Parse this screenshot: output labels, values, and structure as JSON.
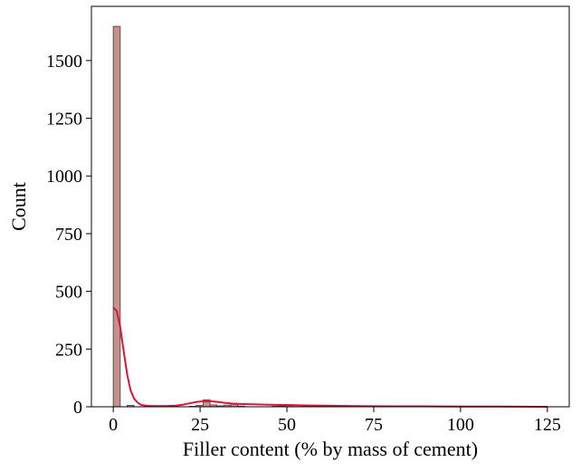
{
  "chart_data": {
    "type": "bar",
    "subtype": "histogram-with-kde",
    "title": "",
    "xlabel": "Filler content (% by mass of cement)",
    "ylabel": "Count",
    "xlim": [
      -6.3,
      131.3
    ],
    "ylim": [
      0,
      1735
    ],
    "xticks": [
      0,
      25,
      50,
      75,
      100,
      125
    ],
    "yticks": [
      0,
      250,
      500,
      750,
      1000,
      1250,
      1500
    ],
    "grid": false,
    "legend": "none",
    "bin_start": 0,
    "bin_width": 1.99,
    "counts": [
      1648,
      0,
      6,
      0,
      0,
      0,
      0,
      0,
      0,
      0,
      0,
      2,
      6,
      30,
      8,
      4,
      7,
      15,
      3,
      0,
      0,
      0,
      0,
      2,
      4,
      7,
      0,
      0,
      0,
      0,
      0,
      0,
      0,
      0,
      0,
      0,
      0,
      0,
      0,
      0,
      1,
      0,
      1,
      0,
      0,
      0,
      0,
      0,
      0,
      0,
      1,
      0,
      0,
      0,
      0,
      0,
      0,
      0,
      0,
      0,
      0,
      0,
      0
    ],
    "kde": {
      "x": [
        0,
        1,
        2,
        3,
        4,
        5,
        6,
        7,
        8,
        10,
        12,
        15,
        18,
        20,
        22,
        24,
        26,
        28,
        30,
        32,
        35,
        40,
        45,
        50,
        55,
        60,
        70,
        80,
        90,
        100,
        110,
        125
      ],
      "y": [
        430,
        415,
        345,
        240,
        140,
        70,
        35,
        18,
        8,
        4,
        3,
        3,
        5,
        9,
        15,
        21,
        24,
        24,
        21,
        17,
        13,
        11,
        9,
        8,
        6,
        5,
        3,
        2,
        2,
        1,
        1,
        0
      ]
    },
    "colors": {
      "bar_fill": "#c8908a",
      "bar_edge": "#555555",
      "kde_line": "#dc143c"
    }
  }
}
